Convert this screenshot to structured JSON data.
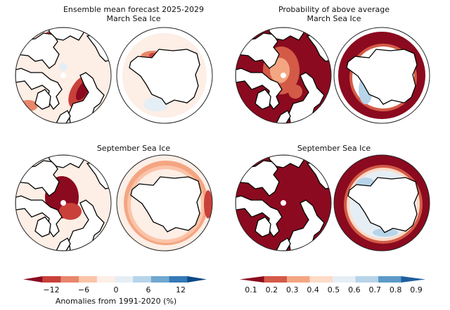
{
  "panels": {
    "left_title": "Ensemble mean forecast 2025-2029",
    "right_title": "Probability of above average",
    "march": "March Sea Ice",
    "september": "September Sea Ice"
  },
  "colorbars": {
    "anomaly": {
      "ticks": [
        "−12",
        "−6",
        "0",
        "6",
        "12"
      ],
      "label": "Anomalies from 1991-2020 (%)",
      "levels": [
        -15,
        -12,
        -9,
        -6,
        -3,
        0,
        3,
        6,
        9,
        12,
        15
      ],
      "colors": [
        "#8b0a1f",
        "#c9403a",
        "#e8866a",
        "#fbc4a8",
        "#fdeee6",
        "#e6eef5",
        "#b7d4e9",
        "#6fa8d0",
        "#3479b6",
        "#0d4a87"
      ]
    },
    "probability": {
      "ticks": [
        "0.1",
        "0.2",
        "0.3",
        "0.4",
        "0.5",
        "0.6",
        "0.7",
        "0.8",
        "0.9"
      ],
      "colors": [
        "#8b0a1f",
        "#d35a47",
        "#f4a582",
        "#fddbc7",
        "#e6eef5",
        "#b7d4e9",
        "#5d9ac8",
        "#1f5f9e"
      ]
    }
  }
}
